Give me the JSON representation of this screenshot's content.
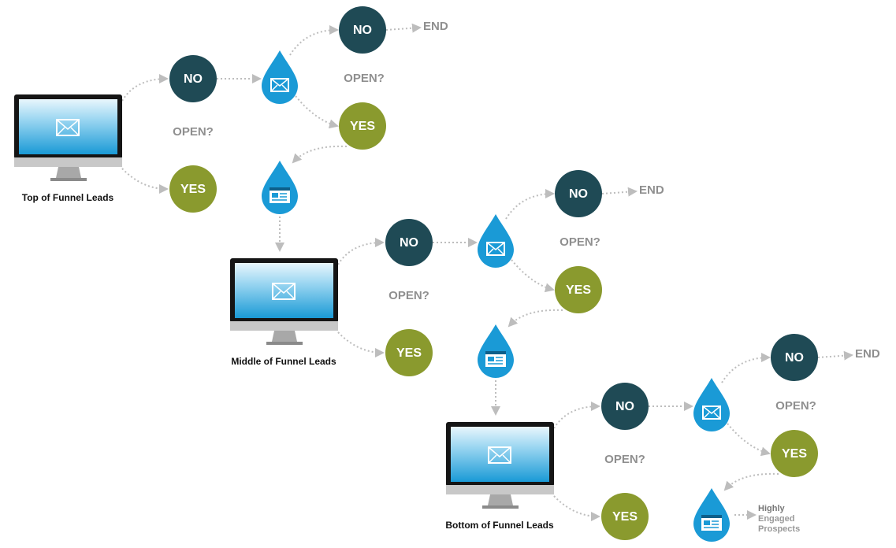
{
  "stages": [
    {
      "label": "Top of Funnel Leads",
      "first_email": {
        "question": "OPEN?",
        "no": "NO",
        "yes": "YES"
      },
      "second_email": {
        "question": "OPEN?",
        "no": "NO",
        "yes": "YES",
        "end": "END"
      }
    },
    {
      "label": "Middle of Funnel Leads",
      "first_email": {
        "question": "OPEN?",
        "no": "NO",
        "yes": "YES"
      },
      "second_email": {
        "question": "OPEN?",
        "no": "NO",
        "yes": "YES",
        "end": "END"
      }
    },
    {
      "label": "Bottom of Funnel Leads",
      "first_email": {
        "question": "OPEN?",
        "no": "NO",
        "yes": "YES"
      },
      "second_email": {
        "question": "OPEN?",
        "no": "NO",
        "yes": "YES",
        "end": "END"
      }
    }
  ],
  "outcome": {
    "lines": [
      "Highly",
      "Engaged",
      "Prospects"
    ]
  }
}
